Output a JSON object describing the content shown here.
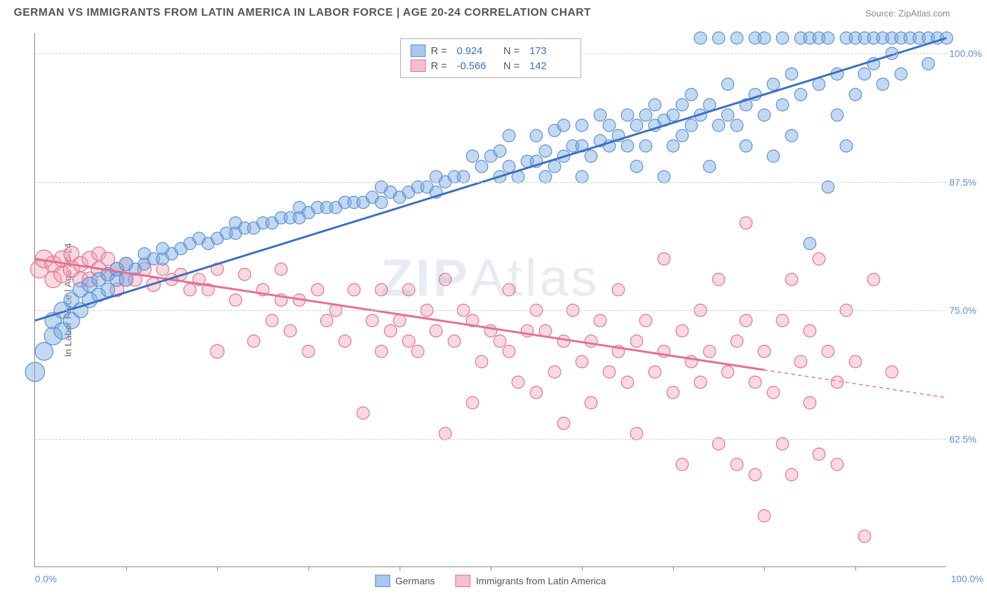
{
  "title": "GERMAN VS IMMIGRANTS FROM LATIN AMERICA IN LABOR FORCE | AGE 20-24 CORRELATION CHART",
  "source": "Source: ZipAtlas.com",
  "y_axis_title": "In Labor Force | Age 20-24",
  "x_axis": {
    "min": 0,
    "max": 100,
    "label_left": "0.0%",
    "label_right": "100.0%",
    "tick_positions": [
      10,
      20,
      30,
      40,
      50,
      60,
      70,
      80,
      90
    ]
  },
  "y_axis": {
    "min": 50,
    "max": 102,
    "gridlines": [
      62.5,
      75.0,
      87.5,
      100.0
    ],
    "labels": [
      "62.5%",
      "75.0%",
      "87.5%",
      "100.0%"
    ]
  },
  "watermark": {
    "zip": "ZIP",
    "atlas": "Atlas"
  },
  "legend_top": {
    "series1": {
      "swatch_fill": "#a9c6ec",
      "swatch_border": "#5b8fd6",
      "R": "0.924",
      "N": "173"
    },
    "series2": {
      "swatch_fill": "#f3c0cd",
      "swatch_border": "#e56f8f",
      "R": "-0.566",
      "N": "142"
    }
  },
  "legend_bottom": {
    "series1": {
      "swatch_fill": "#a9c6ec",
      "swatch_border": "#5b8fd6",
      "label": "Germans"
    },
    "series2": {
      "swatch_fill": "#f3c0cd",
      "swatch_border": "#e56f8f",
      "label": "Immigrants from Latin America"
    }
  },
  "series": {
    "blue": {
      "fill": "rgba(120,170,225,0.45)",
      "stroke": "#5b8fd6",
      "marker_r_base": 9,
      "trend": {
        "x1": 0,
        "y1": 74,
        "x2": 100,
        "y2": 101.5,
        "color": "#3b6fc6",
        "width": 3,
        "dash_after_x": null
      },
      "points": [
        [
          0,
          69,
          14
        ],
        [
          1,
          71,
          13
        ],
        [
          2,
          72.5,
          13
        ],
        [
          2,
          74,
          12
        ],
        [
          3,
          73,
          12
        ],
        [
          3,
          75,
          12
        ],
        [
          4,
          74,
          12
        ],
        [
          4,
          76,
          11
        ],
        [
          5,
          75,
          11
        ],
        [
          5,
          77,
          11
        ],
        [
          6,
          76,
          11
        ],
        [
          6,
          77.5,
          11
        ],
        [
          7,
          76.5,
          10
        ],
        [
          7,
          78,
          10
        ],
        [
          8,
          77,
          10
        ],
        [
          8,
          78.5,
          10
        ],
        [
          9,
          78,
          10
        ],
        [
          9,
          79,
          10
        ],
        [
          10,
          78,
          10
        ],
        [
          10,
          79.5,
          10
        ],
        [
          11,
          79,
          9
        ],
        [
          12,
          79.5,
          9
        ],
        [
          12,
          80.5,
          9
        ],
        [
          13,
          80,
          9
        ],
        [
          14,
          80,
          9
        ],
        [
          14,
          81,
          9
        ],
        [
          15,
          80.5,
          9
        ],
        [
          16,
          81,
          9
        ],
        [
          17,
          81.5,
          9
        ],
        [
          18,
          82,
          9
        ],
        [
          19,
          81.5,
          9
        ],
        [
          20,
          82,
          9
        ],
        [
          21,
          82.5,
          9
        ],
        [
          22,
          82.5,
          9
        ],
        [
          22,
          83.5,
          9
        ],
        [
          23,
          83,
          9
        ],
        [
          24,
          83,
          9
        ],
        [
          25,
          83.5,
          9
        ],
        [
          26,
          83.5,
          9
        ],
        [
          27,
          84,
          9
        ],
        [
          28,
          84,
          9
        ],
        [
          29,
          84,
          9
        ],
        [
          29,
          85,
          9
        ],
        [
          30,
          84.5,
          9
        ],
        [
          31,
          85,
          9
        ],
        [
          32,
          85,
          9
        ],
        [
          33,
          85,
          9
        ],
        [
          34,
          85.5,
          9
        ],
        [
          35,
          85.5,
          9
        ],
        [
          36,
          85.5,
          9
        ],
        [
          37,
          86,
          9
        ],
        [
          38,
          85.5,
          9
        ],
        [
          38,
          87,
          9
        ],
        [
          39,
          86.5,
          9
        ],
        [
          40,
          86,
          9
        ],
        [
          41,
          86.5,
          9
        ],
        [
          42,
          87,
          9
        ],
        [
          43,
          87,
          9
        ],
        [
          44,
          86.5,
          9
        ],
        [
          44,
          88,
          9
        ],
        [
          45,
          87.5,
          9
        ],
        [
          46,
          88,
          9
        ],
        [
          47,
          88,
          9
        ],
        [
          48,
          90,
          9
        ],
        [
          49,
          89,
          9
        ],
        [
          50,
          90,
          9
        ],
        [
          51,
          90.5,
          9
        ],
        [
          51,
          88,
          9
        ],
        [
          52,
          92,
          9
        ],
        [
          52,
          89,
          9
        ],
        [
          53,
          88,
          9
        ],
        [
          54,
          89.5,
          9
        ],
        [
          55,
          89.5,
          9
        ],
        [
          55,
          92,
          9
        ],
        [
          56,
          88,
          9
        ],
        [
          56,
          90.5,
          9
        ],
        [
          57,
          92.5,
          9
        ],
        [
          57,
          89,
          9
        ],
        [
          58,
          90,
          9
        ],
        [
          58,
          93,
          9
        ],
        [
          59,
          91,
          9
        ],
        [
          60,
          91,
          9
        ],
        [
          60,
          93,
          9
        ],
        [
          60,
          88,
          9
        ],
        [
          61,
          90,
          9
        ],
        [
          62,
          91.5,
          9
        ],
        [
          62,
          94,
          9
        ],
        [
          63,
          91,
          9
        ],
        [
          63,
          93,
          9
        ],
        [
          64,
          92,
          9
        ],
        [
          65,
          91,
          9
        ],
        [
          65,
          94,
          9
        ],
        [
          66,
          93,
          9
        ],
        [
          66,
          89,
          9
        ],
        [
          67,
          94,
          9
        ],
        [
          67,
          91,
          9
        ],
        [
          68,
          93,
          9
        ],
        [
          68,
          95,
          9
        ],
        [
          69,
          88,
          9
        ],
        [
          69,
          93.5,
          9
        ],
        [
          70,
          94,
          9
        ],
        [
          70,
          91,
          9
        ],
        [
          71,
          95,
          9
        ],
        [
          71,
          92,
          9
        ],
        [
          72,
          96,
          9
        ],
        [
          72,
          93,
          9
        ],
        [
          73,
          94,
          9
        ],
        [
          73,
          101.5,
          9
        ],
        [
          74,
          95,
          9
        ],
        [
          74,
          89,
          9
        ],
        [
          75,
          93,
          9
        ],
        [
          75,
          101.5,
          9
        ],
        [
          76,
          94,
          9
        ],
        [
          76,
          97,
          9
        ],
        [
          77,
          93,
          9
        ],
        [
          77,
          101.5,
          9
        ],
        [
          78,
          95,
          9
        ],
        [
          78,
          91,
          9
        ],
        [
          79,
          101.5,
          9
        ],
        [
          79,
          96,
          9
        ],
        [
          80,
          94,
          9
        ],
        [
          80,
          101.5,
          9
        ],
        [
          81,
          97,
          9
        ],
        [
          81,
          90,
          9
        ],
        [
          82,
          95,
          9
        ],
        [
          82,
          101.5,
          9
        ],
        [
          83,
          98,
          9
        ],
        [
          83,
          92,
          9
        ],
        [
          84,
          101.5,
          9
        ],
        [
          84,
          96,
          9
        ],
        [
          85,
          81.5,
          9
        ],
        [
          85,
          101.5,
          9
        ],
        [
          86,
          97,
          9
        ],
        [
          86,
          101.5,
          9
        ],
        [
          87,
          87,
          9
        ],
        [
          87,
          101.5,
          9
        ],
        [
          88,
          98,
          9
        ],
        [
          88,
          94,
          9
        ],
        [
          89,
          101.5,
          9
        ],
        [
          89,
          91,
          9
        ],
        [
          90,
          101.5,
          9
        ],
        [
          90,
          96,
          9
        ],
        [
          91,
          101.5,
          9
        ],
        [
          91,
          98,
          9
        ],
        [
          92,
          101.5,
          9
        ],
        [
          92,
          99,
          9
        ],
        [
          93,
          101.5,
          9
        ],
        [
          93,
          97,
          9
        ],
        [
          94,
          101.5,
          9
        ],
        [
          94,
          100,
          9
        ],
        [
          95,
          101.5,
          9
        ],
        [
          95,
          98,
          9
        ],
        [
          96,
          101.5,
          9
        ],
        [
          97,
          101.5,
          9
        ],
        [
          98,
          101.5,
          9
        ],
        [
          98,
          99,
          9
        ],
        [
          99,
          101.5,
          9
        ],
        [
          100,
          101.5,
          9
        ]
      ]
    },
    "pink": {
      "fill": "rgba(240,160,180,0.40)",
      "stroke": "#e56f8f",
      "marker_r_base": 9,
      "trend": {
        "x1": 0,
        "y1": 80,
        "x2": 100,
        "y2": 66.5,
        "color": "#e56f8f",
        "width": 3,
        "dash_after_x": 80
      },
      "points": [
        [
          0.5,
          79,
          13
        ],
        [
          1,
          80,
          13
        ],
        [
          2,
          79.5,
          12
        ],
        [
          2,
          78,
          12
        ],
        [
          3,
          80,
          12
        ],
        [
          3,
          78.5,
          12
        ],
        [
          4,
          79,
          12
        ],
        [
          4,
          80.5,
          11
        ],
        [
          5,
          78,
          11
        ],
        [
          5,
          79.5,
          11
        ],
        [
          6,
          80,
          11
        ],
        [
          6,
          78,
          11
        ],
        [
          7,
          79,
          11
        ],
        [
          7,
          80.5,
          10
        ],
        [
          8,
          78.5,
          10
        ],
        [
          8,
          80,
          10
        ],
        [
          9,
          79,
          10
        ],
        [
          9,
          77,
          10
        ],
        [
          10,
          78,
          10
        ],
        [
          10,
          79.5,
          10
        ],
        [
          11,
          78,
          10
        ],
        [
          12,
          79,
          10
        ],
        [
          13,
          77.5,
          10
        ],
        [
          14,
          79,
          9
        ],
        [
          15,
          78,
          9
        ],
        [
          16,
          78.5,
          9
        ],
        [
          17,
          77,
          9
        ],
        [
          18,
          78,
          9
        ],
        [
          19,
          77,
          9
        ],
        [
          20,
          79,
          9
        ],
        [
          20,
          71,
          10
        ],
        [
          22,
          76,
          9
        ],
        [
          23,
          78.5,
          9
        ],
        [
          24,
          72,
          9
        ],
        [
          25,
          77,
          9
        ],
        [
          26,
          74,
          9
        ],
        [
          27,
          76,
          9
        ],
        [
          27,
          79,
          9
        ],
        [
          28,
          73,
          9
        ],
        [
          29,
          76,
          9
        ],
        [
          30,
          71,
          9
        ],
        [
          31,
          77,
          9
        ],
        [
          32,
          74,
          9
        ],
        [
          33,
          75,
          9
        ],
        [
          34,
          72,
          9
        ],
        [
          35,
          77,
          9
        ],
        [
          36,
          65,
          9
        ],
        [
          37,
          74,
          9
        ],
        [
          38,
          71,
          9
        ],
        [
          38,
          77,
          9
        ],
        [
          39,
          73,
          9
        ],
        [
          40,
          74,
          9
        ],
        [
          41,
          72,
          9
        ],
        [
          41,
          77,
          9
        ],
        [
          42,
          71,
          9
        ],
        [
          43,
          75,
          9
        ],
        [
          44,
          73,
          9
        ],
        [
          45,
          63,
          9
        ],
        [
          45,
          78,
          9
        ],
        [
          46,
          72,
          9
        ],
        [
          47,
          75,
          9
        ],
        [
          48,
          66,
          9
        ],
        [
          48,
          74,
          9
        ],
        [
          49,
          70,
          9
        ],
        [
          50,
          73,
          9
        ],
        [
          51,
          72,
          9
        ],
        [
          52,
          71,
          9
        ],
        [
          52,
          77,
          9
        ],
        [
          53,
          68,
          9
        ],
        [
          54,
          73,
          9
        ],
        [
          55,
          67,
          9
        ],
        [
          55,
          75,
          9
        ],
        [
          56,
          73,
          9
        ],
        [
          57,
          69,
          9
        ],
        [
          58,
          72,
          9
        ],
        [
          58,
          64,
          9
        ],
        [
          59,
          75,
          9
        ],
        [
          60,
          70,
          9
        ],
        [
          61,
          72,
          9
        ],
        [
          61,
          66,
          9
        ],
        [
          62,
          74,
          9
        ],
        [
          63,
          69,
          9
        ],
        [
          64,
          71,
          9
        ],
        [
          64,
          77,
          9
        ],
        [
          65,
          68,
          9
        ],
        [
          66,
          72,
          9
        ],
        [
          66,
          63,
          9
        ],
        [
          67,
          74,
          9
        ],
        [
          68,
          69,
          9
        ],
        [
          69,
          71,
          9
        ],
        [
          69,
          80,
          9
        ],
        [
          70,
          67,
          9
        ],
        [
          71,
          73,
          9
        ],
        [
          71,
          60,
          9
        ],
        [
          72,
          70,
          9
        ],
        [
          73,
          68,
          9
        ],
        [
          73,
          75,
          9
        ],
        [
          74,
          71,
          9
        ],
        [
          75,
          62,
          9
        ],
        [
          75,
          78,
          9
        ],
        [
          76,
          69,
          9
        ],
        [
          77,
          72,
          9
        ],
        [
          77,
          60,
          9
        ],
        [
          78,
          74,
          9
        ],
        [
          78,
          83.5,
          9
        ],
        [
          79,
          68,
          9
        ],
        [
          79,
          59,
          9
        ],
        [
          80,
          71,
          9
        ],
        [
          80,
          55,
          9
        ],
        [
          81,
          67,
          9
        ],
        [
          82,
          74,
          9
        ],
        [
          82,
          62,
          9
        ],
        [
          83,
          59,
          9
        ],
        [
          83,
          78,
          9
        ],
        [
          84,
          70,
          9
        ],
        [
          85,
          73,
          9
        ],
        [
          85,
          66,
          9
        ],
        [
          86,
          61,
          9
        ],
        [
          86,
          80,
          9
        ],
        [
          87,
          71,
          9
        ],
        [
          88,
          68,
          9
        ],
        [
          88,
          60,
          9
        ],
        [
          89,
          75,
          9
        ],
        [
          90,
          70,
          9
        ],
        [
          91,
          53,
          9
        ],
        [
          92,
          78,
          9
        ],
        [
          94,
          69,
          9
        ]
      ]
    }
  }
}
